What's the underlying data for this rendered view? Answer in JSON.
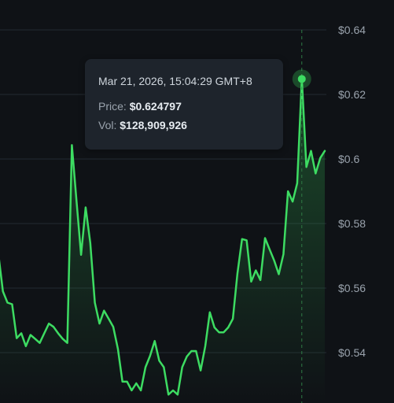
{
  "chart_data": {
    "type": "area",
    "y_axis_position": "right",
    "ylim": [
      0.525,
      0.645
    ],
    "y_ticks": [
      0.54,
      0.56,
      0.58,
      0.6,
      0.62,
      0.64
    ],
    "y_tick_labels": [
      "$0.54",
      "$0.56",
      "$0.58",
      "$0.6",
      "$0.62",
      "$0.64"
    ],
    "grid": true,
    "line_color": "#3ddc62",
    "series": [
      {
        "values": [
          0.5725,
          0.5708,
          0.559,
          0.5555,
          0.555,
          0.5445,
          0.546,
          0.542,
          0.5455,
          0.5443,
          0.543,
          0.546,
          0.549,
          0.548,
          0.546,
          0.5443,
          0.543,
          0.6043,
          0.587,
          0.5703,
          0.585,
          0.574,
          0.5555,
          0.549,
          0.553,
          0.5505,
          0.548,
          0.5412,
          0.531,
          0.531,
          0.5283,
          0.5305,
          0.5283,
          0.5355,
          0.539,
          0.5436,
          0.5375,
          0.5355,
          0.527,
          0.5283,
          0.527,
          0.5355,
          0.5388,
          0.5405,
          0.5405,
          0.5345,
          0.542,
          0.5525,
          0.5478,
          0.5463,
          0.5463,
          0.5478,
          0.5505,
          0.5645,
          0.5752,
          0.5748,
          0.562,
          0.5655,
          0.5625,
          0.5755,
          0.572,
          0.5685,
          0.5643,
          0.5705,
          0.59,
          0.5868,
          0.5925,
          0.6248,
          0.5975,
          0.6025,
          0.5955,
          0.6003,
          0.6025
        ]
      }
    ],
    "highlight": {
      "index": 67,
      "date": "Mar 21, 2026, 15:04:29 GMT+8",
      "price_label": "Price:",
      "price": "$0.624797",
      "vol_label": "Vol:",
      "vol": "$128,909,926"
    }
  }
}
